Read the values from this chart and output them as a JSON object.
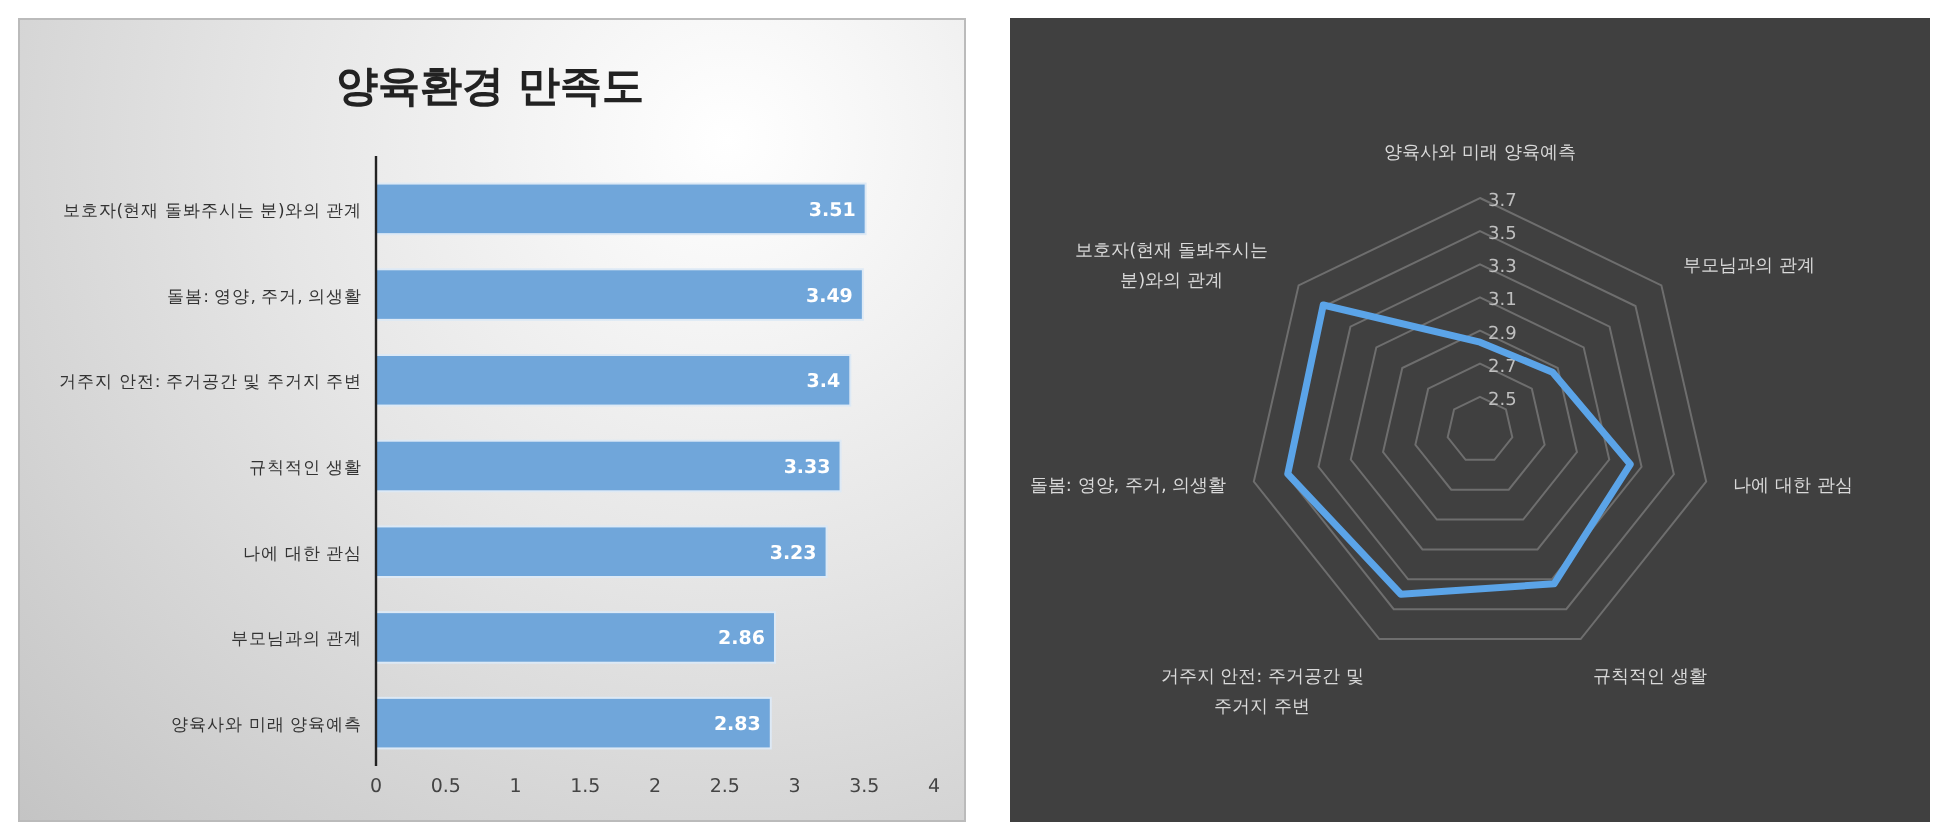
{
  "chart_data": [
    {
      "type": "bar",
      "orientation": "horizontal",
      "title": "양육환경 만족도",
      "categories": [
        "보호자(현재 돌봐주시는 분)와의 관계",
        "돌봄: 영양, 주거, 의생활",
        "거주지 안전: 주거공간 및 주거지 주변",
        "규칙적인 생활",
        "나에 대한 관심",
        "부모님과의 관계",
        "양육사와 미래 양육예측"
      ],
      "values": [
        3.51,
        3.49,
        3.4,
        3.33,
        3.23,
        2.86,
        2.83
      ],
      "color": "#70a6da",
      "xlim": [
        0,
        4
      ],
      "xticks": [
        0,
        0.5,
        1,
        1.5,
        2,
        2.5,
        3,
        3.5,
        4
      ],
      "data_labels": true
    },
    {
      "type": "radar",
      "categories": [
        "양육사와 미래 양육예측",
        "부모님과의 관계",
        "나에 대한 관심",
        "규칙적인 생활",
        "거주지 안전: 주거공간 및 주거지 주변",
        "돌봄: 영양, 주거, 의생활",
        "보호자(현재 돌봐주시는 분)와의 관계"
      ],
      "series": [
        {
          "color": "#5ba4e8",
          "values": [
            2.83,
            2.86,
            3.23,
            3.33,
            3.4,
            3.49,
            3.51
          ]
        }
      ],
      "ylim": [
        2.3,
        3.7
      ],
      "yticks": [
        2.5,
        2.7,
        2.9,
        3.1,
        3.3,
        3.5,
        3.7
      ],
      "grid": true
    }
  ]
}
